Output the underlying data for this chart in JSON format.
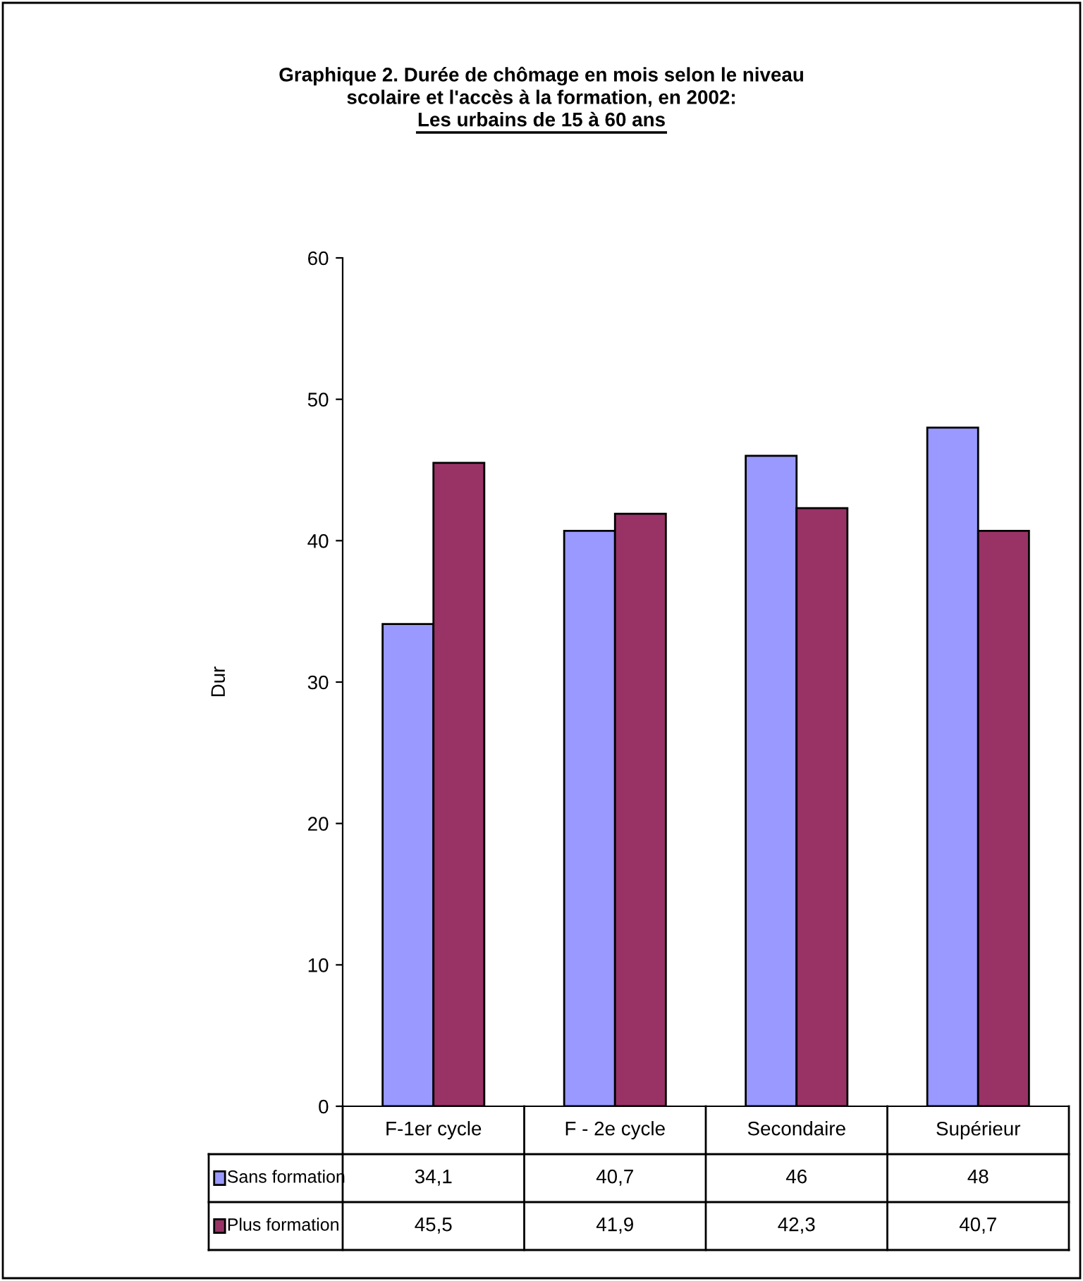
{
  "chart_data": {
    "type": "bar",
    "title": "Graphique 2. Durée de chômage en mois selon le niveau\nscolaire et l'accès à la formation, en 2002:",
    "subtitle": "Les urbains de 15 à 60 ans",
    "ylabel": "Dur",
    "categories": [
      "F-1er cycle",
      "F - 2e cycle",
      "Secondaire",
      "Supérieur"
    ],
    "series": [
      {
        "name": "Sans formation",
        "color": "#9999ff",
        "values": [
          34.1,
          40.7,
          46,
          48
        ],
        "value_labels": [
          "34,1",
          "40,7",
          "46",
          "48"
        ]
      },
      {
        "name": "Plus formation",
        "color": "#993366",
        "values": [
          45.5,
          41.9,
          42.3,
          40.7
        ],
        "value_labels": [
          "45,5",
          "41,9",
          "42,3",
          "40,7"
        ]
      }
    ],
    "ylim": [
      0,
      60
    ],
    "yticks": [
      0,
      10,
      20,
      30,
      40,
      50,
      60
    ],
    "grid": false,
    "legend": "bottom"
  }
}
